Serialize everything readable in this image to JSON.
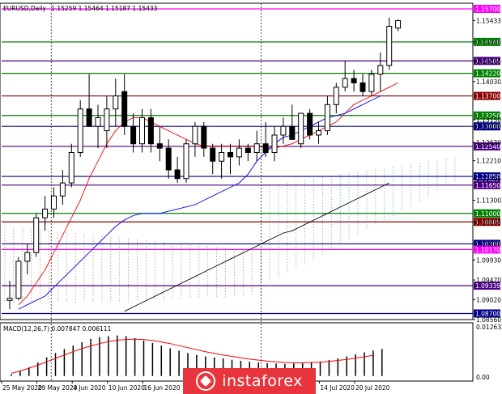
{
  "header": {
    "symbol": "EURUSD,Daily",
    "ohlc": "1.15259 1.15464 1.15187 1.15433"
  },
  "macd_header": "MACD(12,26,7) 0.007847 0.006111",
  "watermark_text": "instaforex",
  "chart_data": [
    {
      "type": "candlestick",
      "title": "EURUSD,Daily",
      "ylim": [
        1.0856,
        1.1583
      ],
      "y_ticks": [
        "1.15433",
        "1.14940",
        "1.14505",
        "1.14030",
        "1.13150",
        "1.13000",
        "1.12630",
        "1.12210",
        "1.11795",
        "1.11300",
        "1.10805",
        "1.10300",
        "1.09930",
        "1.09470",
        "1.09020",
        "1.08560"
      ],
      "x_labels": [
        {
          "label": "25 May 2020",
          "index": 0
        },
        {
          "label": "29 May 2020",
          "index": 4
        },
        {
          "label": "4 Jun 2020",
          "index": 8
        },
        {
          "label": "10 Jun 2020",
          "index": 12
        },
        {
          "label": "16 Jun 2020",
          "index": 16
        },
        {
          "label": "14 Jul 2020",
          "index": 36
        },
        {
          "label": "20 Jul 2020",
          "index": 40
        }
      ],
      "candles": [
        {
          "o": 1.09,
          "h": 1.0945,
          "l": 1.088,
          "c": 1.0905
        },
        {
          "o": 1.0905,
          "h": 1.1,
          "l": 1.09,
          "c": 1.099
        },
        {
          "o": 1.099,
          "h": 1.103,
          "l": 1.096,
          "c": 1.101
        },
        {
          "o": 1.101,
          "h": 1.11,
          "l": 1.1,
          "c": 1.109
        },
        {
          "o": 1.109,
          "h": 1.114,
          "l": 1.106,
          "c": 1.111
        },
        {
          "o": 1.111,
          "h": 1.116,
          "l": 1.109,
          "c": 1.114
        },
        {
          "o": 1.114,
          "h": 1.12,
          "l": 1.112,
          "c": 1.117
        },
        {
          "o": 1.117,
          "h": 1.126,
          "l": 1.116,
          "c": 1.124
        },
        {
          "o": 1.124,
          "h": 1.136,
          "l": 1.123,
          "c": 1.134
        },
        {
          "o": 1.134,
          "h": 1.142,
          "l": 1.13,
          "c": 1.13
        },
        {
          "o": 1.13,
          "h": 1.135,
          "l": 1.125,
          "c": 1.132
        },
        {
          "o": 1.129,
          "h": 1.137,
          "l": 1.125,
          "c": 1.134
        },
        {
          "o": 1.134,
          "h": 1.141,
          "l": 1.13,
          "c": 1.137
        },
        {
          "o": 1.138,
          "h": 1.142,
          "l": 1.128,
          "c": 1.13
        },
        {
          "o": 1.13,
          "h": 1.133,
          "l": 1.124,
          "c": 1.126
        },
        {
          "o": 1.126,
          "h": 1.134,
          "l": 1.124,
          "c": 1.132
        },
        {
          "o": 1.132,
          "h": 1.134,
          "l": 1.124,
          "c": 1.126
        },
        {
          "o": 1.126,
          "h": 1.13,
          "l": 1.122,
          "c": 1.125
        },
        {
          "o": 1.125,
          "h": 1.127,
          "l": 1.118,
          "c": 1.12
        },
        {
          "o": 1.12,
          "h": 1.123,
          "l": 1.117,
          "c": 1.118
        },
        {
          "o": 1.118,
          "h": 1.127,
          "l": 1.117,
          "c": 1.126
        },
        {
          "o": 1.126,
          "h": 1.131,
          "l": 1.123,
          "c": 1.13
        },
        {
          "o": 1.13,
          "h": 1.131,
          "l": 1.123,
          "c": 1.125
        },
        {
          "o": 1.125,
          "h": 1.126,
          "l": 1.119,
          "c": 1.122
        },
        {
          "o": 1.122,
          "h": 1.126,
          "l": 1.118,
          "c": 1.124
        },
        {
          "o": 1.124,
          "h": 1.126,
          "l": 1.119,
          "c": 1.123
        },
        {
          "o": 1.123,
          "h": 1.127,
          "l": 1.121,
          "c": 1.125
        },
        {
          "o": 1.125,
          "h": 1.126,
          "l": 1.122,
          "c": 1.124
        },
        {
          "o": 1.124,
          "h": 1.129,
          "l": 1.122,
          "c": 1.126
        },
        {
          "o": 1.126,
          "h": 1.131,
          "l": 1.123,
          "c": 1.124
        },
        {
          "o": 1.124,
          "h": 1.13,
          "l": 1.122,
          "c": 1.128
        },
        {
          "o": 1.128,
          "h": 1.132,
          "l": 1.126,
          "c": 1.13
        },
        {
          "o": 1.13,
          "h": 1.135,
          "l": 1.127,
          "c": 1.127
        },
        {
          "o": 1.126,
          "h": 1.133,
          "l": 1.125,
          "c": 1.133
        },
        {
          "o": 1.133,
          "h": 1.134,
          "l": 1.127,
          "c": 1.128
        },
        {
          "o": 1.128,
          "h": 1.131,
          "l": 1.126,
          "c": 1.129
        },
        {
          "o": 1.129,
          "h": 1.137,
          "l": 1.128,
          "c": 1.135
        },
        {
          "o": 1.135,
          "h": 1.14,
          "l": 1.133,
          "c": 1.139
        },
        {
          "o": 1.139,
          "h": 1.145,
          "l": 1.138,
          "c": 1.141
        },
        {
          "o": 1.141,
          "h": 1.143,
          "l": 1.138,
          "c": 1.14
        },
        {
          "o": 1.14,
          "h": 1.142,
          "l": 1.137,
          "c": 1.138
        },
        {
          "o": 1.138,
          "h": 1.143,
          "l": 1.137,
          "c": 1.142
        },
        {
          "o": 1.142,
          "h": 1.147,
          "l": 1.138,
          "c": 1.144
        },
        {
          "o": 1.144,
          "h": 1.155,
          "l": 1.143,
          "c": 1.153
        },
        {
          "o": 1.1526,
          "h": 1.1546,
          "l": 1.1519,
          "c": 1.1543
        }
      ],
      "h_levels": [
        {
          "price": 1.157,
          "label": "1.15700",
          "color": "#ff00ff"
        },
        {
          "price": 1.1494,
          "label": "1.14940",
          "color": "#008000"
        },
        {
          "price": 1.14505,
          "label": "1.14505",
          "color": "#4b0082"
        },
        {
          "price": 1.1422,
          "label": "1.14220",
          "color": "#008000"
        },
        {
          "price": 1.137,
          "label": "1.13700",
          "color": "#8b0000"
        },
        {
          "price": 1.1325,
          "label": "1.13250",
          "color": "#008000"
        },
        {
          "price": 1.13,
          "label": "1.13000",
          "color": "#00008b"
        },
        {
          "price": 1.1254,
          "label": "1.12540",
          "color": "#4b0082"
        },
        {
          "price": 1.1185,
          "label": "1.11850",
          "color": "#00008b"
        },
        {
          "price": 1.1165,
          "label": "1.11650",
          "color": "#4b0082"
        },
        {
          "price": 1.11,
          "label": "1.11000",
          "color": "#008000"
        },
        {
          "price": 1.10805,
          "label": "1.10805",
          "color": "#8b0000"
        },
        {
          "price": 1.103,
          "label": "1.10300",
          "color": "#00008b"
        },
        {
          "price": 1.1017,
          "label": "1.10170",
          "color": "#ff00ff"
        },
        {
          "price": 1.09339,
          "label": "1.09339",
          "color": "#4b0082"
        },
        {
          "price": 1.087,
          "label": "1.08700",
          "color": "#00008b"
        }
      ],
      "series": [
        {
          "type": "line",
          "color": "#ff0000",
          "values": [
            1.089,
            1.091,
            1.094,
            1.097,
            1.101,
            1.105,
            1.109,
            1.113,
            1.118,
            1.122,
            1.126,
            1.129,
            1.131,
            1.132,
            1.132,
            1.131,
            1.13,
            1.129,
            1.128,
            1.127,
            1.126,
            1.1255,
            1.1255,
            1.1255,
            1.1255,
            1.1255,
            1.1255,
            1.1255,
            1.125,
            1.125,
            1.1255,
            1.126,
            1.127,
            1.128,
            1.129,
            1.13,
            1.131,
            1.133,
            1.135,
            1.136,
            1.137,
            1.138,
            1.139,
            1.14
          ]
        },
        {
          "type": "line",
          "color": "#0000ff",
          "values": [
            1.088,
            1.089,
            1.09,
            1.091,
            1.093,
            1.095,
            1.097,
            1.099,
            1.101,
            1.103,
            1.105,
            1.107,
            1.1085,
            1.1095,
            1.11,
            1.11,
            1.11,
            1.1105,
            1.111,
            1.1115,
            1.112,
            1.113,
            1.114,
            1.115,
            1.116,
            1.117,
            1.119,
            1.122,
            1.124,
            1.126,
            1.1275,
            1.128,
            1.129,
            1.13,
            1.131,
            1.132,
            1.1325,
            1.133,
            1.134,
            1.135,
            1.136,
            1.137
          ]
        },
        {
          "type": "line",
          "color": "#000000",
          "values": [
            1.0875,
            1.0885,
            1.0895,
            1.0905,
            1.0915,
            1.0925,
            1.0935,
            1.0945,
            1.0955,
            1.0965,
            1.0975,
            1.0985,
            1.0995,
            1.1005,
            1.1015,
            1.1025,
            1.1035,
            1.1045,
            1.1055,
            1.106,
            1.107,
            1.108,
            1.109,
            1.11,
            1.111,
            1.112,
            1.113,
            1.114,
            1.115,
            1.116,
            1.117
          ]
        }
      ],
      "macd": {
        "label": "MACD(12,26,7)",
        "ylim": [
          -0.0015,
          0.012632
        ],
        "y_ticks": [
          "0.012632",
          "0.00"
        ],
        "histogram": [
          0.0005,
          0.0015,
          0.0025,
          0.004,
          0.0055,
          0.0068,
          0.008,
          0.009,
          0.01,
          0.011,
          0.0115,
          0.0118,
          0.012,
          0.0118,
          0.0112,
          0.0105,
          0.0098,
          0.009,
          0.0082,
          0.0075,
          0.0068,
          0.0062,
          0.0058,
          0.0055,
          0.0052,
          0.0048,
          0.0045,
          0.0042,
          0.004,
          0.0038,
          0.0037,
          0.0036,
          0.0037,
          0.0038,
          0.004,
          0.0043,
          0.0047,
          0.0052,
          0.0058,
          0.0064,
          0.007,
          0.0075,
          0.008
        ],
        "signal": [
          0.0008,
          0.0015,
          0.0023,
          0.0032,
          0.0042,
          0.0052,
          0.0062,
          0.0072,
          0.0081,
          0.0089,
          0.0096,
          0.0102,
          0.0106,
          0.0108,
          0.0109,
          0.0108,
          0.0105,
          0.0101,
          0.0096,
          0.009,
          0.0084,
          0.0078,
          0.0072,
          0.0067,
          0.0062,
          0.0058,
          0.0054,
          0.005,
          0.0047,
          0.0044,
          0.0042,
          0.004,
          0.0039,
          0.0039,
          0.004,
          0.0041,
          0.0043,
          0.0046,
          0.0049,
          0.0053,
          0.0057,
          0.0061
        ]
      }
    }
  ]
}
